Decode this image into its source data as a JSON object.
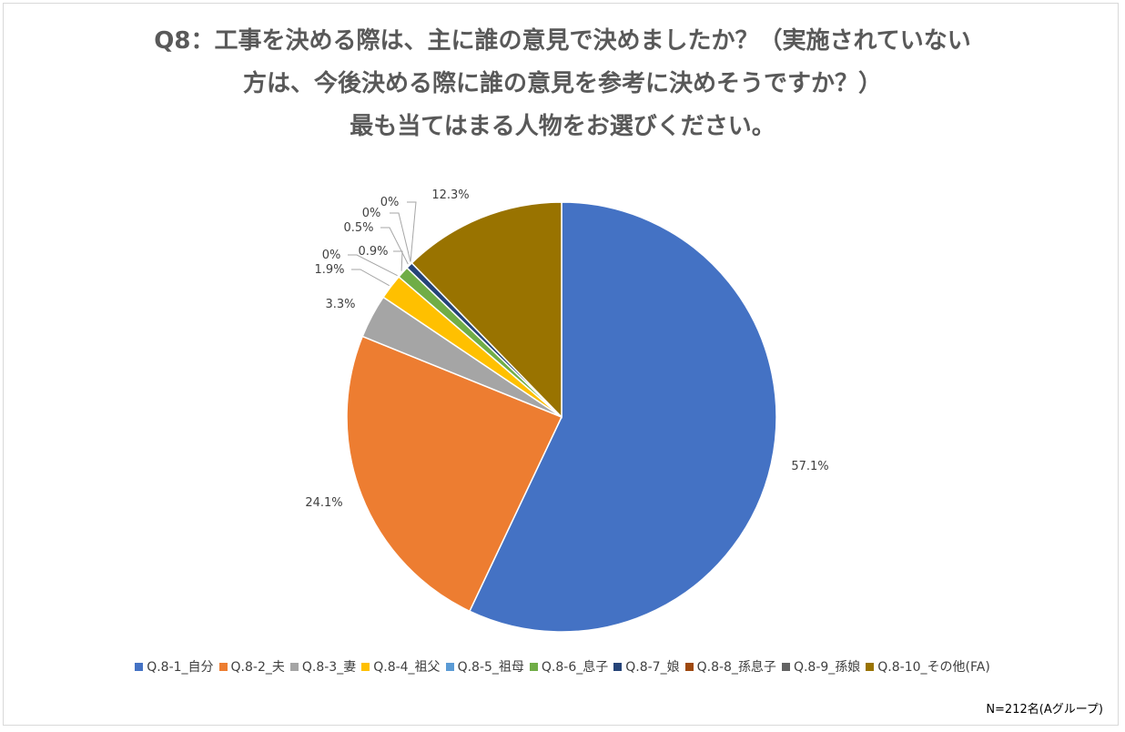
{
  "title_lines": [
    "Q8：工事を決める際は、主に誰の意見で決めましたか？（実施されていない",
    "方は、今後決める際に誰の意見を参考に決めそうですか？）",
    "最も当てはまる人物をお選びください。"
  ],
  "note": "N=212名(Aグループ)",
  "chart_data": {
    "type": "pie",
    "title": "Q8：工事を決める際は、主に誰の意見で決めましたか？（実施されていない方は、今後決める際に誰の意見を参考に決めそうですか？）最も当てはまる人物をお選びください。",
    "slices": [
      {
        "name": "Q.8-1_自分",
        "value": 57.1,
        "label": "57.1%",
        "color": "#4472C4"
      },
      {
        "name": "Q.8-2_夫",
        "value": 24.1,
        "label": "24.1%",
        "color": "#ED7D31"
      },
      {
        "name": "Q.8-3_妻",
        "value": 3.3,
        "label": "3.3%",
        "color": "#A5A5A5"
      },
      {
        "name": "Q.8-4_祖父",
        "value": 1.9,
        "label": "1.9%",
        "color": "#FFC000"
      },
      {
        "name": "Q.8-5_祖母",
        "value": 0,
        "label": "0%",
        "color": "#5B9BD5"
      },
      {
        "name": "Q.8-6_息子",
        "value": 0.9,
        "label": "0.9%",
        "color": "#70AD47"
      },
      {
        "name": "Q.8-7_娘",
        "value": 0.5,
        "label": "0.5%",
        "color": "#264478"
      },
      {
        "name": "Q.8-8_孫息子",
        "value": 0,
        "label": "0%",
        "color": "#9E480E"
      },
      {
        "name": "Q.8-9_孫娘",
        "value": 0,
        "label": "0%",
        "color": "#636363"
      },
      {
        "name": "Q.8-10_その他(FA)",
        "value": 12.3,
        "label": "12.3%",
        "color": "#997300"
      }
    ],
    "legend_position": "bottom"
  }
}
